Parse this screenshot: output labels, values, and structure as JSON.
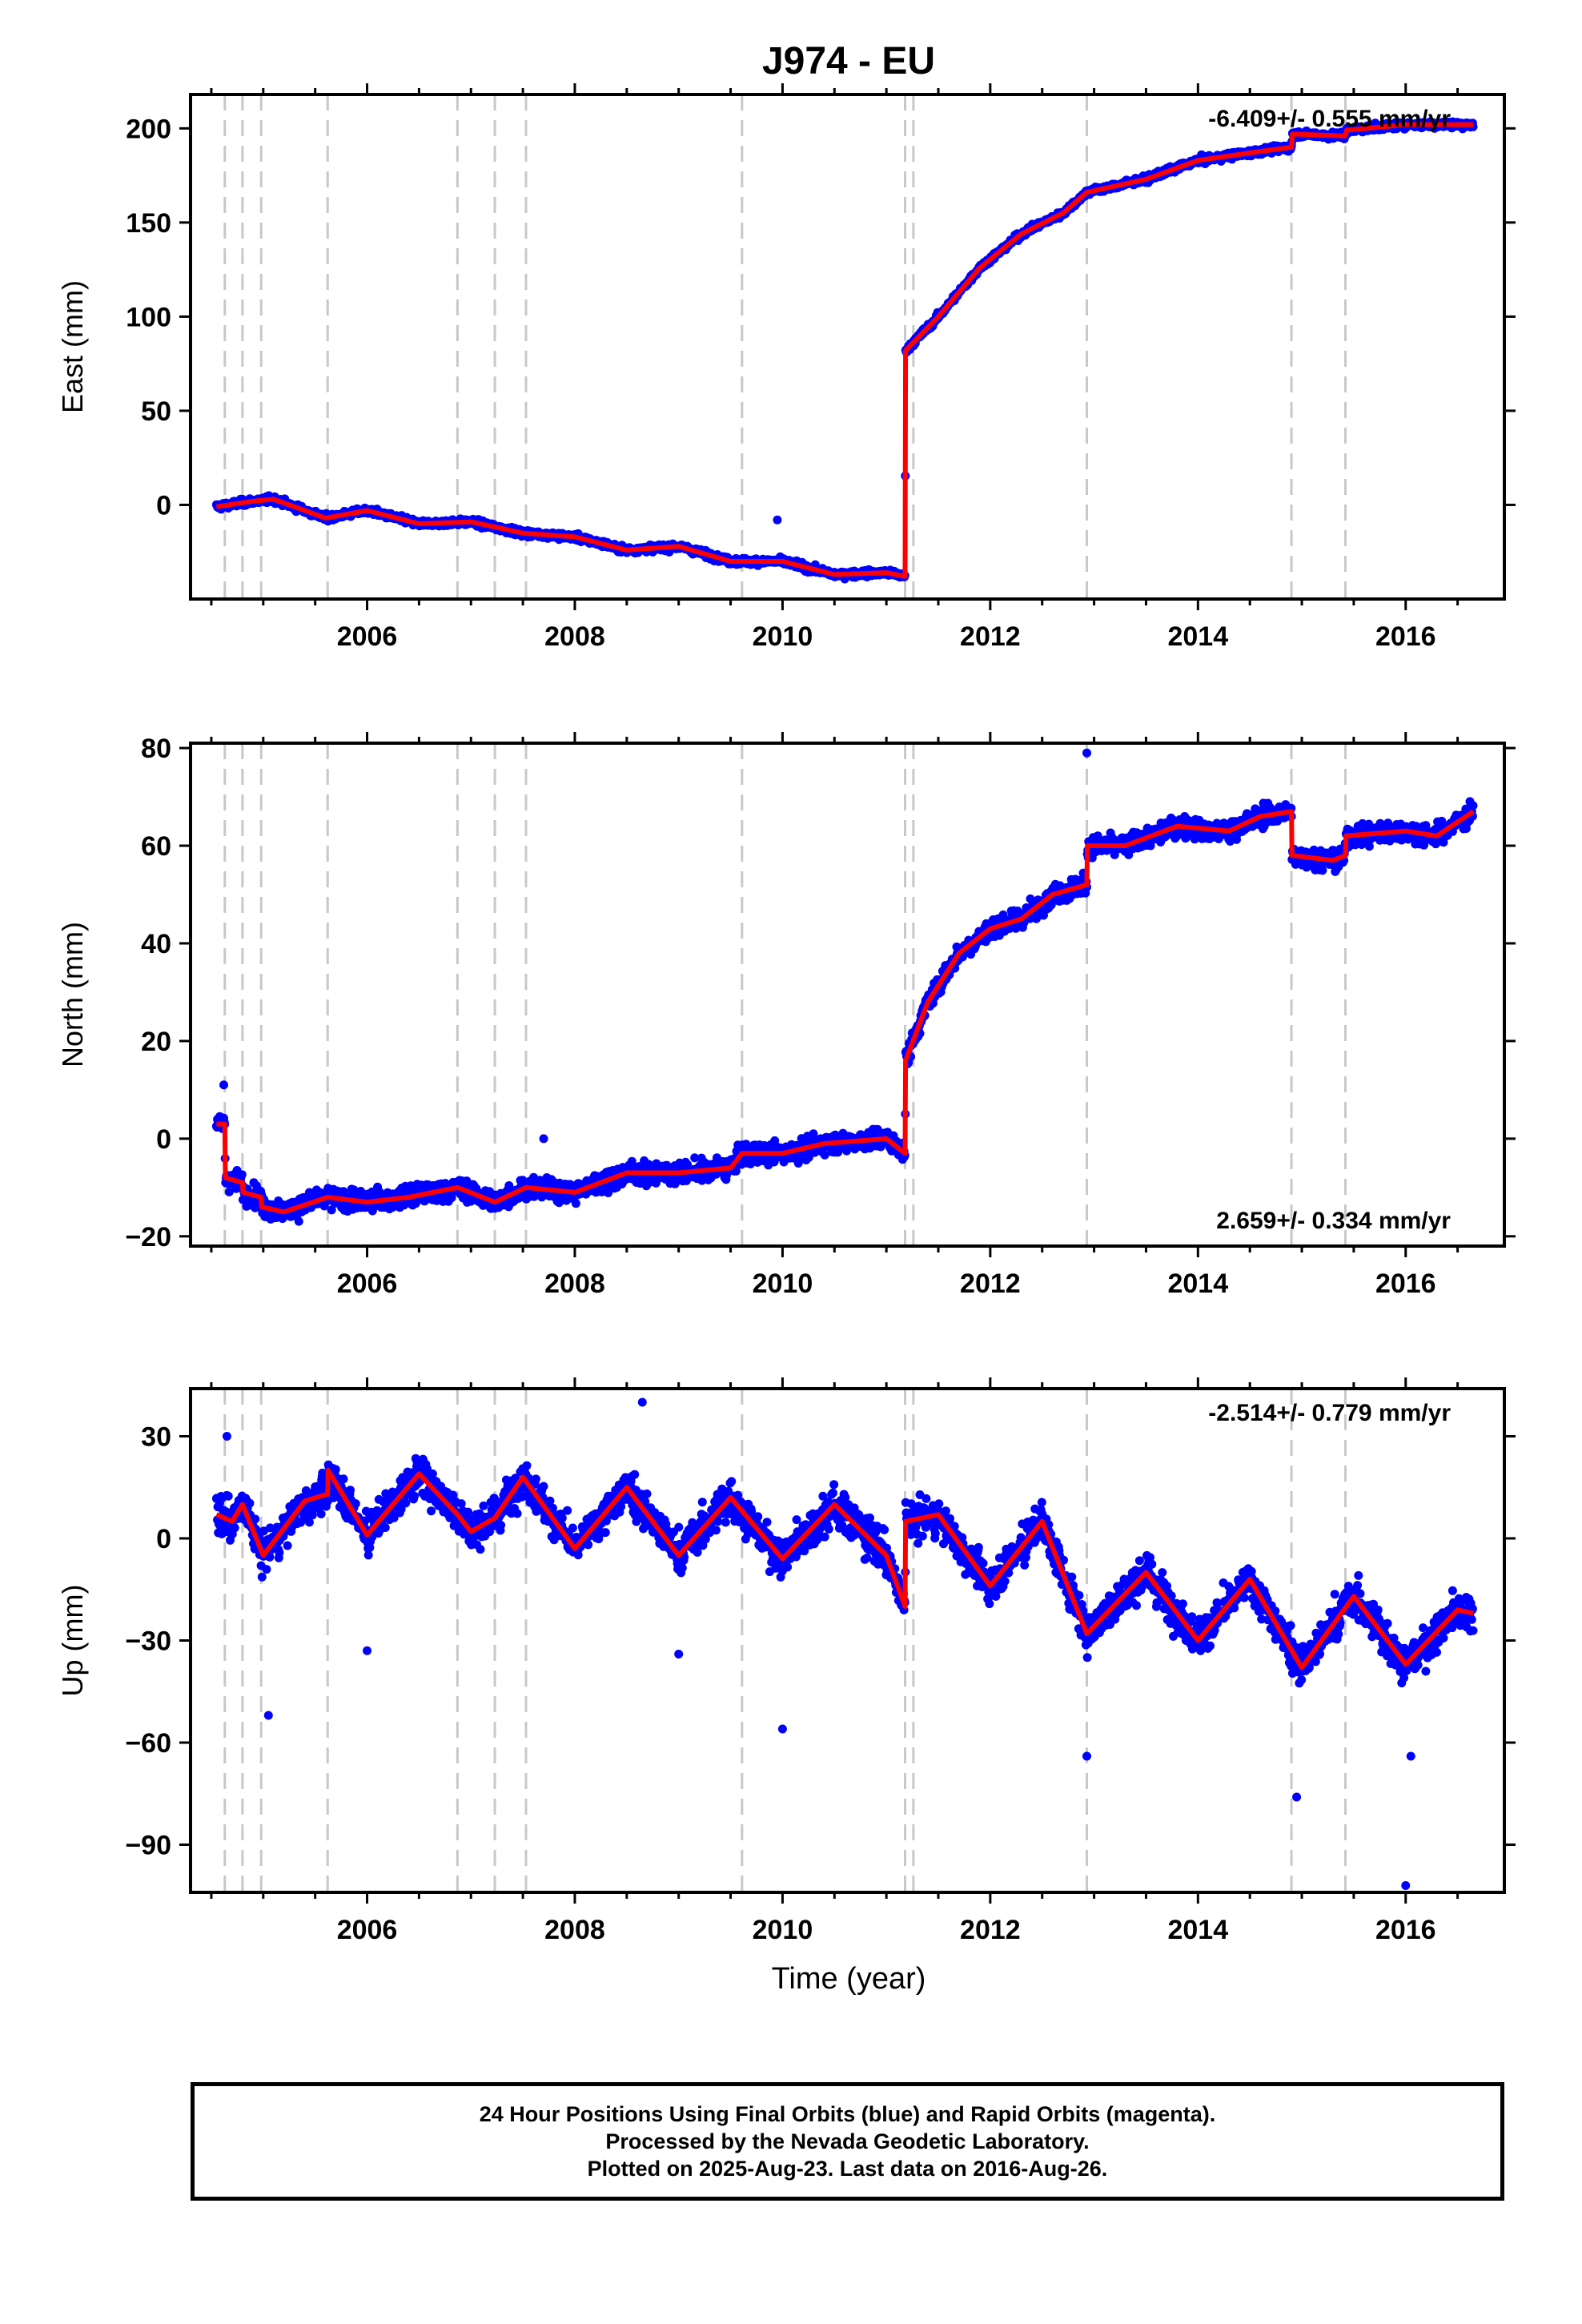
{
  "title": "J974 - EU",
  "xlabel": "Time (year)",
  "caption": {
    "line1": "24 Hour Positions Using Final Orbits (blue) and Rapid Orbits (magenta).",
    "line2": "Processed by the Nevada Geodetic Laboratory.",
    "line3": "Plotted on 2025-Aug-23. Last data on 2016-Aug-26."
  },
  "colors": {
    "observations": "#0000ff",
    "model": "#ff0000",
    "event_lines": "#c8c8c8",
    "axes": "#000000"
  },
  "event_lines": [
    2004.63,
    2004.8,
    2004.98,
    2005.62,
    2006.87,
    2007.23,
    2007.53,
    2009.61,
    2011.18,
    2011.26,
    2012.93,
    2014.9,
    2015.42
  ],
  "chart_data": [
    {
      "type": "scatter",
      "component": "east",
      "ylabel": "East (mm)",
      "xlim": [
        2004.3,
        2016.95
      ],
      "ylim": [
        -50,
        218
      ],
      "xticks": [
        2006,
        2008,
        2010,
        2012,
        2014,
        2016
      ],
      "yticks": [
        0,
        50,
        100,
        150,
        200
      ],
      "rate_label": "-6.409+/- 0.555 mm/yr",
      "rate_label_position": "top-right",
      "data_start": 2004.55,
      "data_end": 2016.65,
      "model_curve": [
        [
          2004.55,
          -1
        ],
        [
          2004.9,
          2
        ],
        [
          2005.1,
          3
        ],
        [
          2005.6,
          -7
        ],
        [
          2006.0,
          -3
        ],
        [
          2006.5,
          -10
        ],
        [
          2007.0,
          -9
        ],
        [
          2007.5,
          -15
        ],
        [
          2008.0,
          -17
        ],
        [
          2008.5,
          -24
        ],
        [
          2009.0,
          -22
        ],
        [
          2009.5,
          -30
        ],
        [
          2010.0,
          -30
        ],
        [
          2010.5,
          -37
        ],
        [
          2011.0,
          -36
        ],
        [
          2011.18,
          -38
        ],
        [
          2011.185,
          82
        ],
        [
          2011.5,
          100
        ],
        [
          2011.9,
          126
        ],
        [
          2012.3,
          144
        ],
        [
          2012.7,
          155
        ],
        [
          2012.93,
          166
        ],
        [
          2013.5,
          173
        ],
        [
          2014.0,
          183
        ],
        [
          2014.5,
          187
        ],
        [
          2014.9,
          190
        ],
        [
          2014.91,
          197
        ],
        [
          2015.42,
          196
        ],
        [
          2015.43,
          199
        ],
        [
          2016.0,
          202
        ],
        [
          2016.65,
          202
        ]
      ],
      "outliers": [
        [
          2009.95,
          -8
        ],
        [
          2015.9,
          203
        ]
      ]
    },
    {
      "type": "scatter",
      "component": "north",
      "ylabel": "North (mm)",
      "xlim": [
        2004.3,
        2016.95
      ],
      "ylim": [
        -22,
        81
      ],
      "xticks": [
        2006,
        2008,
        2010,
        2012,
        2014,
        2016
      ],
      "yticks": [
        -20,
        0,
        20,
        40,
        60,
        80
      ],
      "rate_label": "2.659+/- 0.334 mm/yr",
      "rate_label_position": "bottom-right",
      "data_start": 2004.55,
      "data_end": 2016.65,
      "model_curve": [
        [
          2004.55,
          3
        ],
        [
          2004.63,
          3
        ],
        [
          2004.635,
          -8
        ],
        [
          2004.8,
          -9
        ],
        [
          2004.805,
          -11
        ],
        [
          2004.98,
          -12
        ],
        [
          2004.985,
          -14
        ],
        [
          2005.2,
          -15
        ],
        [
          2005.62,
          -12
        ],
        [
          2006.0,
          -13
        ],
        [
          2006.4,
          -12
        ],
        [
          2006.87,
          -10
        ],
        [
          2007.23,
          -13
        ],
        [
          2007.53,
          -10
        ],
        [
          2008.0,
          -11
        ],
        [
          2008.5,
          -7
        ],
        [
          2009.0,
          -7
        ],
        [
          2009.5,
          -6
        ],
        [
          2009.61,
          -3
        ],
        [
          2010.0,
          -3
        ],
        [
          2010.4,
          -1
        ],
        [
          2011.0,
          0
        ],
        [
          2011.18,
          -3
        ],
        [
          2011.185,
          16
        ],
        [
          2011.4,
          28
        ],
        [
          2011.7,
          38
        ],
        [
          2012.0,
          43
        ],
        [
          2012.3,
          45
        ],
        [
          2012.6,
          50
        ],
        [
          2012.93,
          52
        ],
        [
          2012.935,
          60
        ],
        [
          2013.3,
          60
        ],
        [
          2013.8,
          64
        ],
        [
          2014.3,
          63
        ],
        [
          2014.6,
          66
        ],
        [
          2014.9,
          67
        ],
        [
          2014.905,
          58
        ],
        [
          2015.3,
          57
        ],
        [
          2015.42,
          58
        ],
        [
          2015.425,
          62
        ],
        [
          2016.0,
          63
        ],
        [
          2016.3,
          62
        ],
        [
          2016.65,
          67
        ]
      ],
      "outliers": [
        [
          2004.62,
          11
        ],
        [
          2007.7,
          0
        ],
        [
          2012.93,
          79
        ]
      ]
    },
    {
      "type": "scatter",
      "component": "up",
      "ylabel": "Up (mm)",
      "xlim": [
        2004.3,
        2016.95
      ],
      "ylim": [
        -104,
        44
      ],
      "xticks": [
        2006,
        2008,
        2010,
        2012,
        2014,
        2016
      ],
      "yticks": [
        -90,
        -60,
        -30,
        0,
        30
      ],
      "rate_label": "-2.514+/- 0.779 mm/yr",
      "rate_label_position": "top-right",
      "data_start": 2004.55,
      "data_end": 2016.65,
      "model_curve": [
        [
          2004.55,
          7
        ],
        [
          2004.7,
          5
        ],
        [
          2004.8,
          10
        ],
        [
          2005.0,
          -5
        ],
        [
          2005.4,
          11
        ],
        [
          2005.62,
          13
        ],
        [
          2005.625,
          20
        ],
        [
          2006.0,
          1
        ],
        [
          2006.5,
          19
        ],
        [
          2006.87,
          7
        ],
        [
          2007.0,
          2
        ],
        [
          2007.23,
          6
        ],
        [
          2007.5,
          18
        ],
        [
          2008.0,
          -3
        ],
        [
          2008.5,
          15
        ],
        [
          2009.0,
          -5
        ],
        [
          2009.5,
          12
        ],
        [
          2010.0,
          -6
        ],
        [
          2010.5,
          10
        ],
        [
          2011.0,
          -5
        ],
        [
          2011.18,
          -20
        ],
        [
          2011.185,
          5
        ],
        [
          2011.5,
          7
        ],
        [
          2012.0,
          -14
        ],
        [
          2012.5,
          5
        ],
        [
          2012.93,
          -28
        ],
        [
          2013.5,
          -10
        ],
        [
          2014.0,
          -30
        ],
        [
          2014.5,
          -12
        ],
        [
          2015.0,
          -38
        ],
        [
          2015.5,
          -17
        ],
        [
          2016.0,
          -37
        ],
        [
          2016.5,
          -21
        ],
        [
          2016.65,
          -22
        ]
      ],
      "outliers": [
        [
          2004.65,
          30
        ],
        [
          2005.05,
          -52
        ],
        [
          2006.0,
          -33
        ],
        [
          2008.65,
          40
        ],
        [
          2009.0,
          -34
        ],
        [
          2010.0,
          -56
        ],
        [
          2012.93,
          -64
        ],
        [
          2014.95,
          -76
        ],
        [
          2016.0,
          -102
        ],
        [
          2016.05,
          -64
        ]
      ]
    }
  ]
}
